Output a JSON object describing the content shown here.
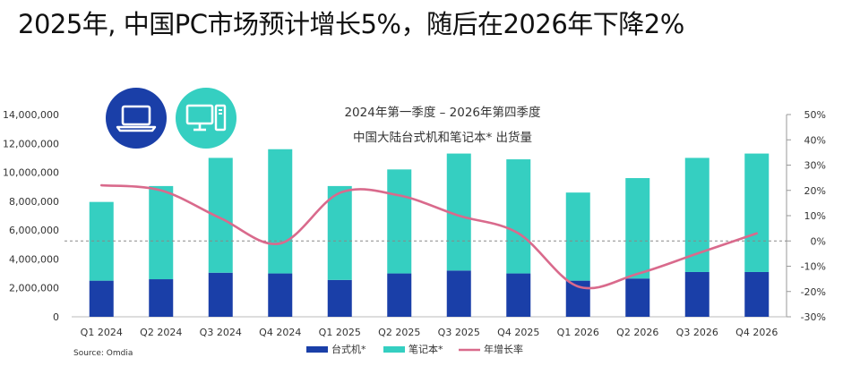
{
  "headline": "2025年, 中国PC市场预计增长5%，随后在2026年下降2%",
  "chart_title_line1": "2024年第一季度 – 2026年第四季度",
  "chart_title_line2": "中国大陆台式机和笔记本* 出货量",
  "source": "Source: Omdia",
  "icons": [
    "laptop-icon",
    "desktop-computer-icon"
  ],
  "colors": {
    "desktop": "#1a3fa8",
    "notebook": "#35cfc1",
    "growth": "#d96a8c",
    "icon_laptop_bg": "#1a3fa8",
    "icon_desktop_bg": "#35cfc1"
  },
  "chart_data": {
    "type": "bar",
    "stacked": true,
    "categories": [
      "Q1 2024",
      "Q2 2024",
      "Q3 2024",
      "Q4 2024",
      "Q1 2025",
      "Q2 2025",
      "Q3 2025",
      "Q4 2025",
      "Q1 2026",
      "Q2 2026",
      "Q3 2026",
      "Q4 2026"
    ],
    "series": [
      {
        "name": "台式机*",
        "type": "bar",
        "axis": "left",
        "values": [
          2500000,
          2600000,
          3050000,
          3000000,
          2550000,
          3000000,
          3200000,
          3000000,
          2500000,
          2650000,
          3100000,
          3100000
        ]
      },
      {
        "name": "笔记本*",
        "type": "bar",
        "axis": "left",
        "values": [
          5450000,
          6450000,
          7950000,
          8600000,
          6500000,
          7200000,
          8100000,
          7900000,
          6100000,
          6950000,
          7900000,
          8200000
        ]
      },
      {
        "name": "年增长率",
        "type": "line",
        "axis": "right",
        "values": [
          0.22,
          0.2,
          0.09,
          -0.01,
          0.19,
          0.18,
          0.1,
          0.03,
          -0.18,
          -0.13,
          -0.05,
          0.03
        ]
      }
    ],
    "yleft": {
      "min": 0,
      "max": 14000000,
      "step": 2000000,
      "ticks": [
        "0",
        "2,000,000",
        "4,000,000",
        "6,000,000",
        "8,000,000",
        "10,000,000",
        "12,000,000",
        "14,000,000"
      ]
    },
    "yright": {
      "min": -0.3,
      "max": 0.5,
      "step": 0.1,
      "ticks": [
        "-30%",
        "-20%",
        "-10%",
        "0%",
        "10%",
        "20%",
        "30%",
        "40%",
        "50%"
      ]
    },
    "zero_line": "dashed",
    "grid": false,
    "legend_position": "bottom-center"
  }
}
